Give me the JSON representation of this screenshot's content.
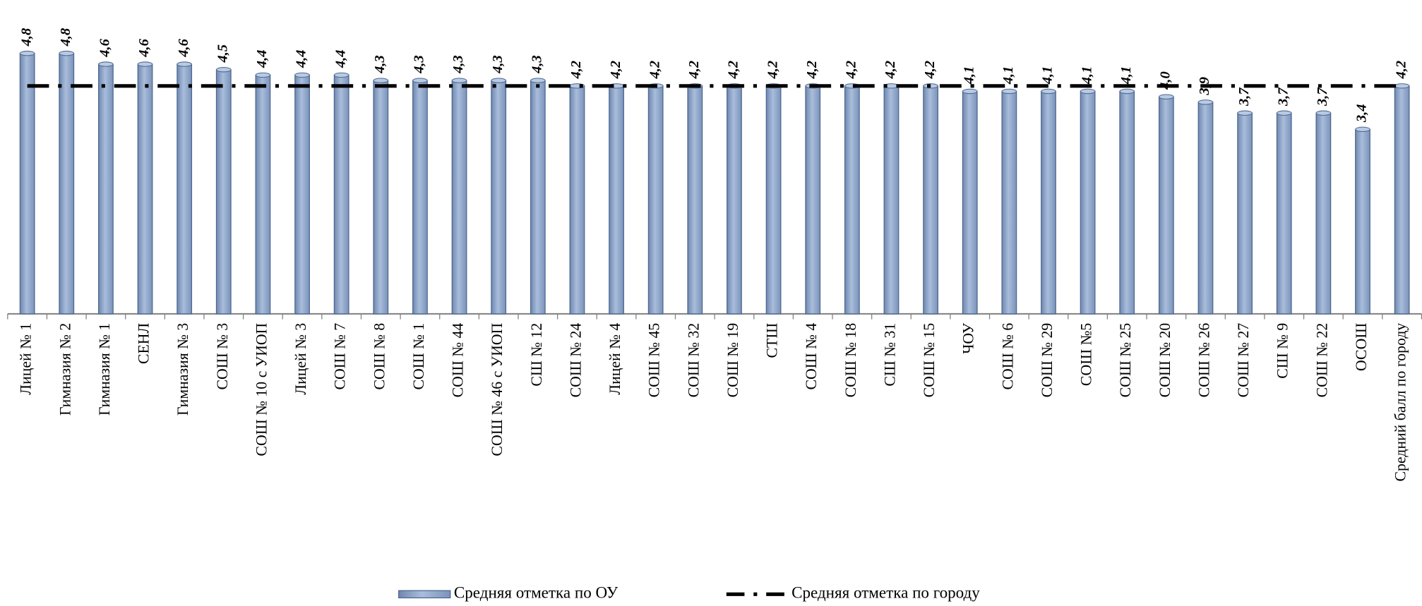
{
  "chart_data": {
    "type": "bar",
    "categories": [
      "Лицей № 1",
      "Гимназия № 2",
      "Гимназия № 1",
      "СЕНЛ",
      "Гимназия № 3",
      "СОШ № 3",
      "СОШ № 10 с УИОП",
      "Лицей № 3",
      "СОШ № 7",
      "СОШ № 8",
      "СОШ № 1",
      "СОШ № 44",
      "СОШ № 46 с УИОП",
      "СШ № 12",
      "СОШ № 24",
      "Лицей № 4",
      "СОШ № 45",
      "СОШ № 32",
      "СОШ № 19",
      "СТШ",
      "СОШ № 4",
      "СОШ № 18",
      "СШ  № 31",
      "СОШ № 15",
      "ЧОУ",
      "СОШ № 6",
      "СОШ № 29",
      "СОШ №5",
      "СОШ № 25",
      "СОШ № 20",
      "СОШ № 26",
      "СОШ № 27",
      "СШ № 9",
      "СОШ № 22",
      "ОСОШ",
      "Средний балл по городу"
    ],
    "series": [
      {
        "name": "Средняя отметка по ОУ",
        "color": "#8ea6c9",
        "values": [
          4.8,
          4.8,
          4.6,
          4.6,
          4.6,
          4.5,
          4.4,
          4.4,
          4.4,
          4.3,
          4.3,
          4.3,
          4.3,
          4.3,
          4.2,
          4.2,
          4.2,
          4.2,
          4.2,
          4.2,
          4.2,
          4.2,
          4.2,
          4.2,
          4.1,
          4.1,
          4.1,
          4.1,
          4.1,
          4.0,
          3.9,
          3.7,
          3.7,
          3.7,
          3.4,
          4.2
        ],
        "value_labels": [
          "4,8",
          "4,8",
          "4,6",
          "4,6",
          "4,6",
          "4,5",
          "4,4",
          "4,4",
          "4,4",
          "4,3",
          "4,3",
          "4,3",
          "4,3",
          "4,3",
          "4,2",
          "4,2",
          "4,2",
          "4,2",
          "4,2",
          "4,2",
          "4,2",
          "4,2",
          "4,2",
          "4,2",
          "4,1",
          "4,1",
          "4,1",
          "4,1",
          "4,1",
          "4,0",
          "3,9",
          "3,7",
          "3,7",
          "3,7",
          "3,4",
          "4,2"
        ]
      },
      {
        "name": "Средняя отметка по городу",
        "color": "#000000",
        "line": true,
        "values": [
          4.2,
          4.2,
          4.2,
          4.2,
          4.2,
          4.2,
          4.2,
          4.2,
          4.2,
          4.2,
          4.2,
          4.2,
          4.2,
          4.2,
          4.2,
          4.2,
          4.2,
          4.2,
          4.2,
          4.2,
          4.2,
          4.2,
          4.2,
          4.2,
          4.2,
          4.2,
          4.2,
          4.2,
          4.2,
          4.2,
          4.2,
          4.2,
          4.2,
          4.2,
          4.2,
          4.2
        ]
      }
    ],
    "ylim": [
      0,
      5.5
    ],
    "legend": "bottom"
  }
}
